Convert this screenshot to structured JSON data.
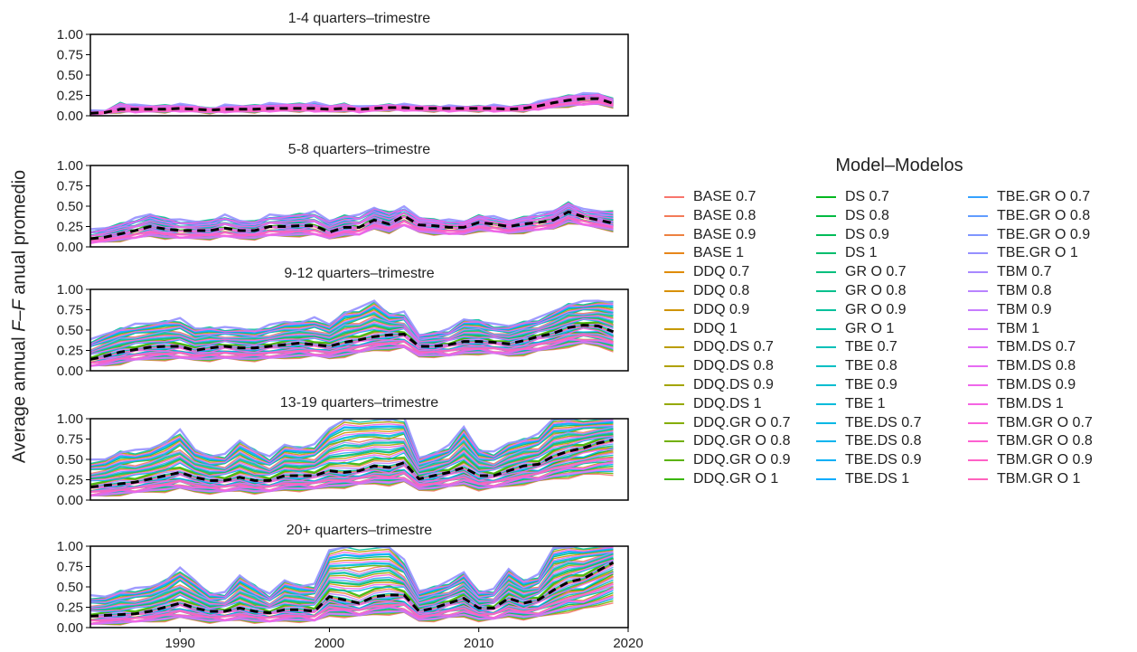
{
  "ylabel_parts": [
    "Average annual ",
    "F–F",
    " anual promedio"
  ],
  "legend": {
    "title": "Model–Modelos",
    "entries": [
      "BASE 0.7",
      "BASE 0.8",
      "BASE 0.9",
      "BASE 1",
      "DDQ 0.7",
      "DDQ 0.8",
      "DDQ 0.9",
      "DDQ 1",
      "DDQ.DS 0.7",
      "DDQ.DS 0.8",
      "DDQ.DS 0.9",
      "DDQ.DS 1",
      "DDQ.GR O 0.7",
      "DDQ.GR O 0.8",
      "DDQ.GR O 0.9",
      "DDQ.GR O 1",
      "DS 0.7",
      "DS 0.8",
      "DS 0.9",
      "DS 1",
      "GR O 0.7",
      "GR O 0.8",
      "GR O 0.9",
      "GR O 1",
      "TBE 0.7",
      "TBE 0.8",
      "TBE 0.9",
      "TBE 1",
      "TBE.DS 0.7",
      "TBE.DS 0.8",
      "TBE.DS 0.9",
      "TBE.DS 1",
      "TBE.GR O 0.7",
      "TBE.GR O 0.8",
      "TBE.GR O 0.9",
      "TBE.GR O 1",
      "TBM 0.7",
      "TBM 0.8",
      "TBM 0.9",
      "TBM 1",
      "TBM.DS 0.7",
      "TBM.DS 0.8",
      "TBM.DS 0.9",
      "TBM.DS 1",
      "TBM.GR O 0.7",
      "TBM.GR O 0.8",
      "TBM.GR O 0.9",
      "TBM.GR O 1"
    ],
    "colors": [
      "#f8766d",
      "#f37b59",
      "#ed8141",
      "#e7861b",
      "#e08b00",
      "#d89000",
      "#cf9400",
      "#c59900",
      "#bb9d00",
      "#b0a100",
      "#a3a500",
      "#95a900",
      "#85ad00",
      "#72b000",
      "#5bb300",
      "#39b600",
      "#00b81f",
      "#00ba42",
      "#00bc59",
      "#00bd6d",
      "#00bf7d",
      "#00c08d",
      "#00c19c",
      "#00c1aa",
      "#00c0b8",
      "#00bfc4",
      "#00bdd0",
      "#00bbdb",
      "#00b8e5",
      "#00b4ef",
      "#00b0f6",
      "#00abfd",
      "#35a2ff",
      "#619cff",
      "#7f96ff",
      "#9590ff",
      "#a889ff",
      "#b983ff",
      "#c77cff",
      "#d474fd",
      "#df70f8",
      "#e76bf3",
      "#ef67eb",
      "#f564e3",
      "#fa62db",
      "#fd61d1",
      "#ff61c6",
      "#ff62bc"
    ]
  },
  "chart_data": {
    "type": "line",
    "x": [
      1984,
      1985,
      1986,
      1987,
      1988,
      1989,
      1990,
      1991,
      1992,
      1993,
      1994,
      1995,
      1996,
      1997,
      1998,
      1999,
      2000,
      2001,
      2002,
      2003,
      2004,
      2005,
      2006,
      2007,
      2008,
      2009,
      2010,
      2011,
      2012,
      2013,
      2014,
      2015,
      2016,
      2017,
      2018,
      2019
    ],
    "xlim": [
      1984,
      2020
    ],
    "xticks": [
      1990,
      2000,
      2010,
      2020
    ],
    "ylim": [
      0,
      1
    ],
    "yticks": [
      "0.00",
      "0.25",
      "0.50",
      "0.75",
      "1.00"
    ],
    "reference_line": {
      "style": "black dashed"
    },
    "panels": [
      {
        "title": "1-4 quarters–trimestre",
        "reference": [
          0.03,
          0.04,
          0.08,
          0.08,
          0.08,
          0.08,
          0.09,
          0.08,
          0.07,
          0.08,
          0.08,
          0.08,
          0.09,
          0.09,
          0.09,
          0.09,
          0.08,
          0.09,
          0.08,
          0.09,
          0.1,
          0.1,
          0.09,
          0.09,
          0.09,
          0.09,
          0.09,
          0.09,
          0.08,
          0.09,
          0.12,
          0.16,
          0.19,
          0.21,
          0.21,
          0.15
        ],
        "band": {
          "low": [
            0.02,
            0.03,
            0.05,
            0.05,
            0.05,
            0.05,
            0.06,
            0.05,
            0.04,
            0.05,
            0.05,
            0.05,
            0.06,
            0.06,
            0.06,
            0.06,
            0.05,
            0.06,
            0.05,
            0.06,
            0.07,
            0.07,
            0.06,
            0.06,
            0.06,
            0.06,
            0.06,
            0.06,
            0.06,
            0.06,
            0.08,
            0.1,
            0.12,
            0.13,
            0.14,
            0.11
          ],
          "high": [
            0.05,
            0.06,
            0.15,
            0.12,
            0.12,
            0.12,
            0.13,
            0.12,
            0.08,
            0.12,
            0.12,
            0.12,
            0.14,
            0.14,
            0.14,
            0.15,
            0.12,
            0.14,
            0.1,
            0.12,
            0.13,
            0.13,
            0.12,
            0.11,
            0.11,
            0.11,
            0.11,
            0.12,
            0.11,
            0.12,
            0.16,
            0.21,
            0.24,
            0.26,
            0.27,
            0.2
          ]
        }
      },
      {
        "title": "5-8 quarters–trimestre",
        "reference": [
          0.1,
          0.12,
          0.16,
          0.2,
          0.25,
          0.22,
          0.2,
          0.2,
          0.2,
          0.23,
          0.2,
          0.2,
          0.25,
          0.25,
          0.26,
          0.26,
          0.18,
          0.24,
          0.24,
          0.33,
          0.28,
          0.38,
          0.27,
          0.26,
          0.24,
          0.24,
          0.3,
          0.28,
          0.25,
          0.28,
          0.3,
          0.33,
          0.43,
          0.37,
          0.33,
          0.29
        ],
        "band": {
          "low": [
            0.05,
            0.06,
            0.08,
            0.1,
            0.13,
            0.11,
            0.1,
            0.1,
            0.1,
            0.12,
            0.1,
            0.1,
            0.13,
            0.13,
            0.14,
            0.14,
            0.1,
            0.14,
            0.14,
            0.22,
            0.18,
            0.25,
            0.18,
            0.16,
            0.15,
            0.15,
            0.2,
            0.18,
            0.16,
            0.18,
            0.2,
            0.22,
            0.3,
            0.26,
            0.23,
            0.2
          ],
          "high": [
            0.2,
            0.23,
            0.28,
            0.34,
            0.4,
            0.35,
            0.32,
            0.31,
            0.32,
            0.38,
            0.32,
            0.31,
            0.38,
            0.38,
            0.4,
            0.42,
            0.32,
            0.38,
            0.38,
            0.48,
            0.42,
            0.48,
            0.36,
            0.33,
            0.32,
            0.31,
            0.38,
            0.36,
            0.32,
            0.36,
            0.4,
            0.44,
            0.54,
            0.45,
            0.44,
            0.43
          ]
        }
      },
      {
        "title": "9-12 quarters–trimestre",
        "reference": [
          0.14,
          0.18,
          0.23,
          0.26,
          0.29,
          0.3,
          0.3,
          0.25,
          0.28,
          0.3,
          0.28,
          0.28,
          0.3,
          0.32,
          0.34,
          0.32,
          0.3,
          0.35,
          0.38,
          0.42,
          0.44,
          0.45,
          0.3,
          0.3,
          0.32,
          0.36,
          0.36,
          0.35,
          0.33,
          0.37,
          0.42,
          0.46,
          0.53,
          0.56,
          0.55,
          0.48
        ],
        "band": {
          "low": [
            0.05,
            0.06,
            0.09,
            0.12,
            0.13,
            0.14,
            0.14,
            0.13,
            0.13,
            0.14,
            0.13,
            0.13,
            0.14,
            0.15,
            0.17,
            0.17,
            0.15,
            0.18,
            0.21,
            0.25,
            0.26,
            0.27,
            0.17,
            0.18,
            0.17,
            0.2,
            0.21,
            0.2,
            0.18,
            0.2,
            0.23,
            0.26,
            0.3,
            0.32,
            0.3,
            0.25
          ],
          "high": [
            0.37,
            0.45,
            0.52,
            0.56,
            0.58,
            0.61,
            0.63,
            0.52,
            0.53,
            0.52,
            0.52,
            0.5,
            0.55,
            0.6,
            0.6,
            0.64,
            0.57,
            0.72,
            0.76,
            0.86,
            0.7,
            0.71,
            0.44,
            0.47,
            0.5,
            0.63,
            0.62,
            0.56,
            0.55,
            0.6,
            0.64,
            0.73,
            0.82,
            0.84,
            0.86,
            0.85
          ]
        }
      },
      {
        "title": "13-19 quarters–trimestre",
        "reference": [
          0.16,
          0.18,
          0.2,
          0.22,
          0.26,
          0.3,
          0.34,
          0.28,
          0.24,
          0.24,
          0.28,
          0.24,
          0.24,
          0.3,
          0.3,
          0.3,
          0.36,
          0.34,
          0.36,
          0.42,
          0.4,
          0.46,
          0.26,
          0.3,
          0.34,
          0.4,
          0.3,
          0.3,
          0.36,
          0.42,
          0.44,
          0.54,
          0.6,
          0.64,
          0.7,
          0.74
        ],
        "band": {
          "low": [
            0.04,
            0.05,
            0.07,
            0.08,
            0.1,
            0.11,
            0.13,
            0.1,
            0.09,
            0.09,
            0.11,
            0.09,
            0.09,
            0.12,
            0.12,
            0.12,
            0.15,
            0.16,
            0.18,
            0.2,
            0.19,
            0.21,
            0.12,
            0.13,
            0.15,
            0.18,
            0.13,
            0.14,
            0.17,
            0.2,
            0.22,
            0.26,
            0.28,
            0.3,
            0.32,
            0.32
          ],
          "high": [
            0.48,
            0.5,
            0.6,
            0.6,
            0.63,
            0.72,
            0.85,
            0.62,
            0.55,
            0.55,
            0.73,
            0.62,
            0.52,
            0.68,
            0.65,
            0.67,
            0.88,
            1.0,
            1.0,
            1.0,
            1.0,
            1.0,
            0.52,
            0.58,
            0.66,
            0.9,
            0.62,
            0.58,
            0.7,
            0.75,
            0.8,
            1.0,
            1.0,
            1.0,
            1.0,
            1.0
          ]
        }
      },
      {
        "title": "20+ quarters–trimestre",
        "reference": [
          0.14,
          0.15,
          0.16,
          0.17,
          0.2,
          0.25,
          0.3,
          0.24,
          0.2,
          0.2,
          0.24,
          0.2,
          0.18,
          0.22,
          0.22,
          0.2,
          0.38,
          0.34,
          0.3,
          0.38,
          0.4,
          0.4,
          0.2,
          0.24,
          0.3,
          0.36,
          0.24,
          0.24,
          0.36,
          0.3,
          0.34,
          0.46,
          0.56,
          0.6,
          0.7,
          0.8
        ],
        "band": {
          "low": [
            0.03,
            0.04,
            0.05,
            0.06,
            0.07,
            0.09,
            0.11,
            0.09,
            0.07,
            0.07,
            0.09,
            0.07,
            0.06,
            0.08,
            0.08,
            0.07,
            0.14,
            0.14,
            0.13,
            0.16,
            0.17,
            0.17,
            0.08,
            0.09,
            0.11,
            0.13,
            0.09,
            0.09,
            0.13,
            0.11,
            0.12,
            0.16,
            0.2,
            0.22,
            0.26,
            0.32
          ],
          "high": [
            0.38,
            0.38,
            0.45,
            0.47,
            0.5,
            0.58,
            0.72,
            0.58,
            0.42,
            0.42,
            0.64,
            0.52,
            0.4,
            0.58,
            0.52,
            0.52,
            0.95,
            1.0,
            1.0,
            1.0,
            1.0,
            0.82,
            0.45,
            0.5,
            0.56,
            0.68,
            0.44,
            0.46,
            0.72,
            0.58,
            0.64,
            0.98,
            1.0,
            1.0,
            1.0,
            1.0
          ]
        }
      }
    ]
  }
}
